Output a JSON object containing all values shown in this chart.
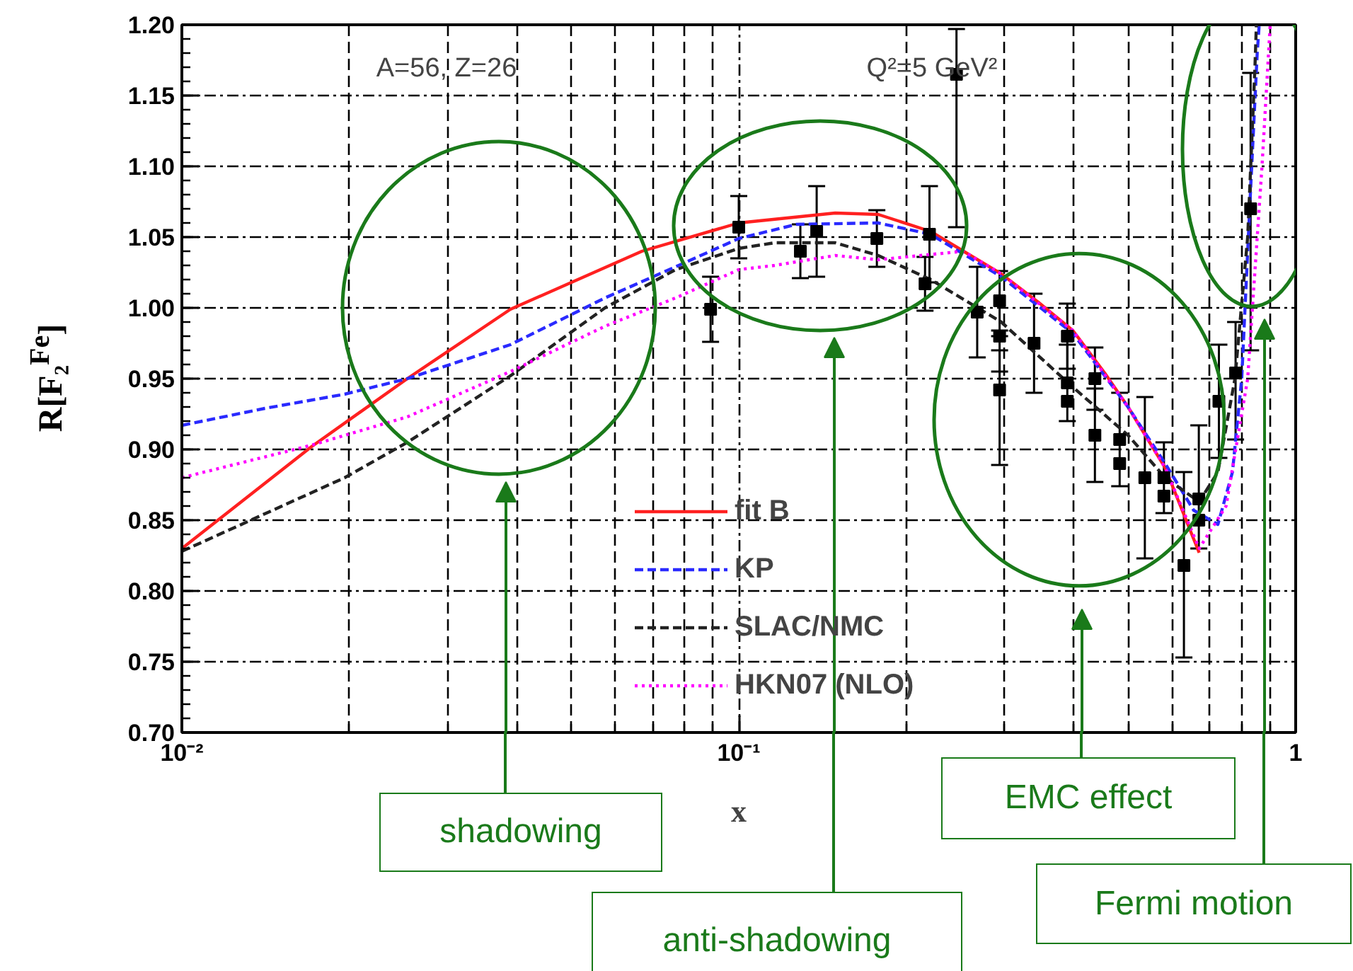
{
  "chart_data": {
    "type": "line",
    "xlabel": "x",
    "ylabel": "R[F₂$^{Fe}$]",
    "log": "x",
    "xlim": [
      0.01,
      1
    ],
    "ylim": [
      0.7,
      1.2
    ],
    "xticks": [
      {
        "value": 0.01,
        "label": "10⁻²"
      },
      {
        "value": 0.1,
        "label": "10⁻¹"
      },
      {
        "value": 1,
        "label": "1"
      }
    ],
    "yticks": [
      {
        "value": 0.7,
        "label": "0.70"
      },
      0.75,
      {
        "value": 0.8,
        "label": "0.80"
      },
      0.85,
      {
        "value": 0.9,
        "label": "0.90"
      },
      0.95,
      {
        "value": 1.0,
        "label": "1.00"
      },
      1.05,
      {
        "value": 1.1,
        "label": "1.10"
      },
      1.15,
      {
        "value": 1.2,
        "label": "1.20"
      }
    ],
    "grid": true,
    "legend": "bottom",
    "series": [
      {
        "name": "fit B",
        "color": "#ff2020",
        "line_style": "solid",
        "x": [
          0.01,
          0.0171,
          0.0254,
          0.0389,
          0.067,
          0.1,
          0.149,
          0.178,
          0.221,
          0.296,
          0.345,
          0.398,
          0.454,
          0.5,
          0.583,
          0.671
        ],
        "values": [
          0.83,
          0.902,
          0.95,
          0.999,
          1.04,
          1.06,
          1.067,
          1.066,
          1.054,
          1.024,
          1.004,
          0.984,
          0.954,
          0.93,
          0.887,
          0.827
        ]
      },
      {
        "name": "KP",
        "color": "#2a2aff",
        "line_style": "dashed",
        "x": [
          0.01,
          0.0141,
          0.0196,
          0.0254,
          0.0389,
          0.0575,
          0.077,
          0.1,
          0.127,
          0.178,
          0.221,
          0.296,
          0.398,
          0.5,
          0.583,
          0.656,
          0.725,
          0.77,
          0.8,
          0.83,
          0.853,
          0.86
        ],
        "values": [
          0.917,
          0.929,
          0.939,
          0.95,
          0.974,
          1.007,
          1.029,
          1.049,
          1.059,
          1.06,
          1.052,
          1.022,
          0.982,
          0.93,
          0.89,
          0.857,
          0.847,
          0.884,
          0.95,
          1.084,
          1.18,
          1.2
        ]
      },
      {
        "name": "SLAC/NMC",
        "color": "#222222",
        "line_style": "dashed",
        "x": [
          0.01,
          0.0196,
          0.0254,
          0.0389,
          0.0575,
          0.077,
          0.1,
          0.116,
          0.149,
          0.178,
          0.221,
          0.296,
          0.398,
          0.5,
          0.583,
          0.671,
          0.725,
          0.778,
          0.82,
          0.845,
          0.85
        ],
        "values": [
          0.828,
          0.88,
          0.905,
          0.952,
          1.0,
          1.027,
          1.042,
          1.046,
          1.046,
          1.037,
          1.02,
          0.99,
          0.944,
          0.91,
          0.88,
          0.863,
          0.884,
          0.95,
          1.05,
          1.17,
          1.2
        ]
      },
      {
        "name": "HKN07 (NLO)",
        "color": "#ff00ff",
        "line_style": "dotted",
        "x": [
          0.01,
          0.0171,
          0.0254,
          0.0389,
          0.0575,
          0.077,
          0.1,
          0.116,
          0.149,
          0.178,
          0.253,
          0.296,
          0.398,
          0.5,
          0.583,
          0.671,
          0.75,
          0.82,
          0.87,
          0.9
        ],
        "values": [
          0.88,
          0.903,
          0.923,
          0.955,
          0.987,
          1.007,
          1.027,
          1.03,
          1.037,
          1.034,
          1.04,
          1.024,
          0.984,
          0.93,
          0.887,
          0.83,
          0.86,
          0.95,
          1.1,
          1.2
        ]
      },
      {
        "type": "scatter",
        "color": "#000000",
        "marker": "square",
        "x": [
          0.089,
          0.1,
          0.129,
          0.138,
          0.177,
          0.22,
          0.216,
          0.246,
          0.268,
          0.294,
          0.294,
          0.294,
          0.339,
          0.389,
          0.389,
          0.389,
          0.436,
          0.436,
          0.483,
          0.483,
          0.536,
          0.58,
          0.58,
          0.63,
          0.67,
          0.67,
          0.728,
          0.78,
          0.83
        ],
        "values": [
          0.999,
          1.057,
          1.04,
          1.054,
          1.049,
          1.052,
          1.017,
          1.165,
          0.997,
          1.005,
          0.98,
          0.942,
          0.975,
          0.98,
          0.947,
          0.934,
          0.95,
          0.91,
          0.907,
          0.89,
          0.88,
          0.88,
          0.867,
          0.818,
          0.85,
          0.865,
          0.934,
          0.954,
          1.07
        ],
        "errors": [
          [
            0.976,
            1.022
          ],
          [
            1.035,
            1.079
          ],
          [
            1.021,
            1.059
          ],
          [
            1.022,
            1.086
          ],
          [
            1.029,
            1.069
          ],
          [
            1.018,
            1.086
          ],
          [
            0.998,
            1.036
          ],
          [
            1.057,
            1.197
          ],
          [
            0.965,
            1.029
          ],
          [
            0.984,
            1.026
          ],
          [
            0.955,
            0.98
          ],
          [
            0.889,
            0.97
          ],
          [
            0.94,
            1.01
          ],
          [
            0.957,
            1.003
          ],
          [
            0.92,
            0.974
          ],
          null,
          [
            0.928,
            0.972
          ],
          [
            0.877,
            0.943
          ],
          [
            0.874,
            0.94
          ],
          null,
          [
            0.823,
            0.937
          ],
          [
            0.855,
            0.905
          ],
          null,
          [
            0.753,
            0.884
          ],
          [
            0.83,
            0.917
          ],
          null,
          [
            0.894,
            0.974
          ],
          [
            0.907,
            0.99
          ],
          [
            0.97,
            1.166
          ]
        ]
      }
    ],
    "annotations": [
      "A=56, Z=26",
      "Q²=5 GeV²",
      "shadowing",
      "anti-shadowing",
      "EMC effect",
      "Fermi motion"
    ]
  }
}
